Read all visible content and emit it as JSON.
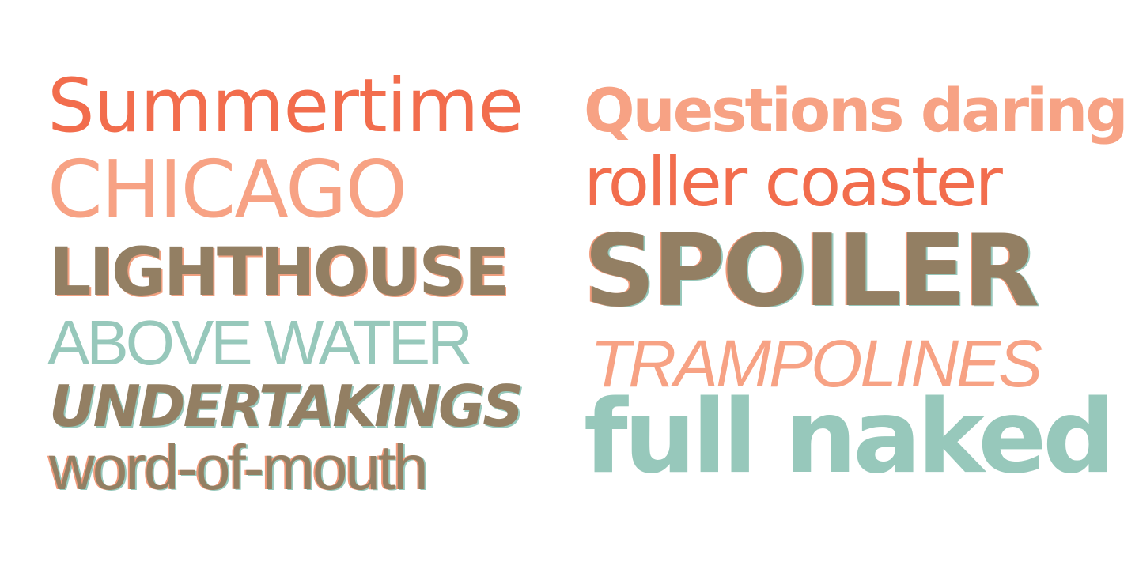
{
  "colors": {
    "coral": "#f26d4d",
    "peach": "#f7a284",
    "taupe": "#937f63",
    "mint": "#97c8bb"
  },
  "left_column": {
    "line1": "Summertime",
    "line2": "CHICAGO",
    "line3": "LIGHTHOUSE",
    "line4": "ABOVE WATER",
    "line5": "UNDERTAKINGS",
    "line6": "word-of-mouth"
  },
  "right_column": {
    "line1": "Questions daring",
    "line2": "roller coaster",
    "line3": "SPOILER",
    "line4": "TRAMPOLINES",
    "line5": "full naked"
  }
}
